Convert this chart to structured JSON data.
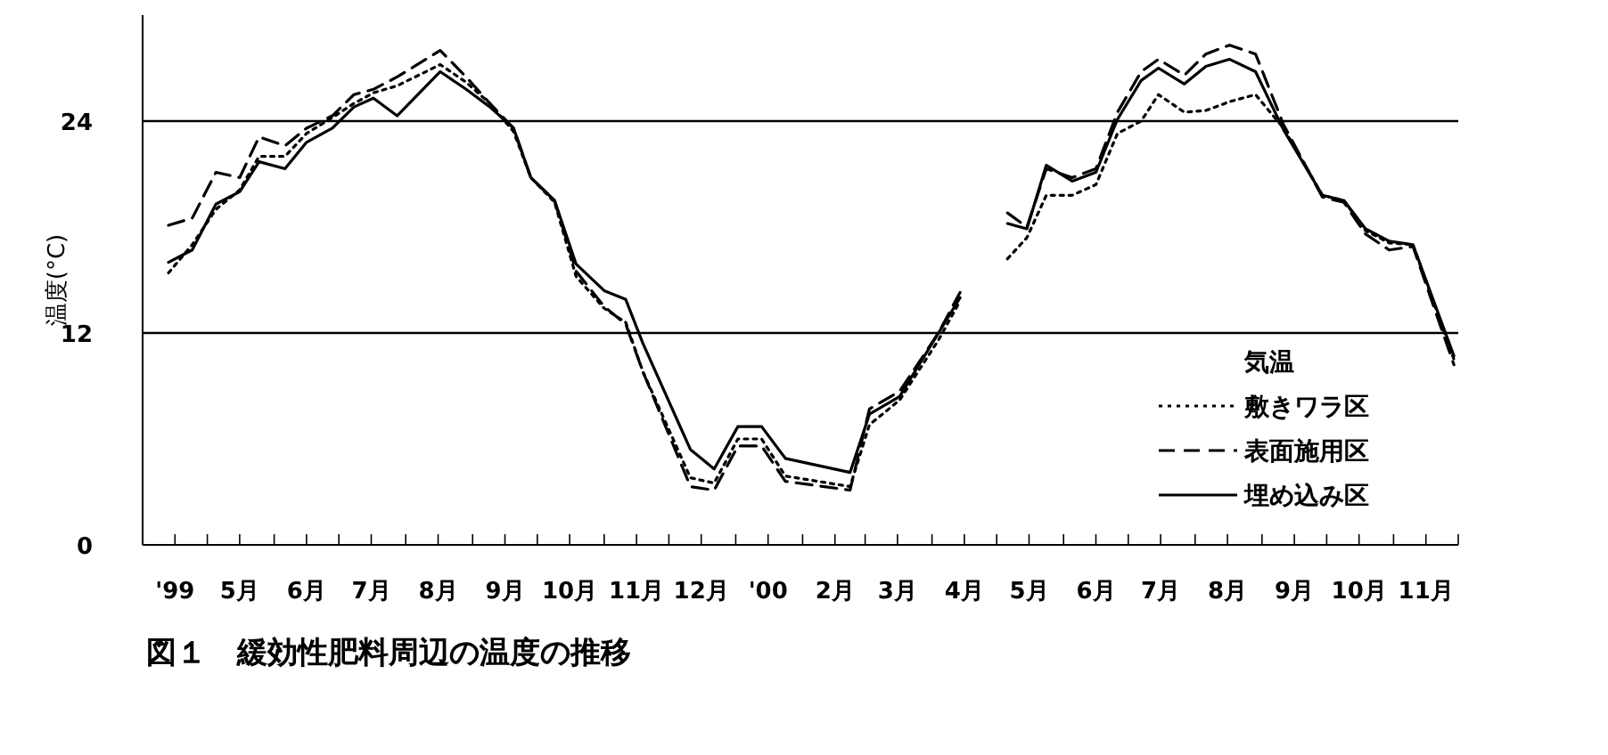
{
  "chart_data": {
    "type": "line",
    "title": "図１　緩効性肥料周辺の温度の推移",
    "ylabel": "温度(°C)",
    "legend_title": "気温",
    "legend": "bottom right",
    "grid": "y",
    "xlim": [
      "1999-04-01",
      "2000-12-01"
    ],
    "ylim": [
      0,
      30
    ],
    "yticks": [
      0,
      12,
      24
    ],
    "xticks": [
      {
        "value": "1999-04-01",
        "label": null
      },
      {
        "value": "1999-04-16",
        "label": "'99"
      },
      {
        "value": "1999-05-01",
        "label": null
      },
      {
        "value": "1999-05-16",
        "label": "5月"
      },
      {
        "value": "1999-06-01",
        "label": null
      },
      {
        "value": "1999-06-16",
        "label": "6月"
      },
      {
        "value": "1999-07-01",
        "label": null
      },
      {
        "value": "1999-07-16",
        "label": "7月"
      },
      {
        "value": "1999-08-01",
        "label": null
      },
      {
        "value": "1999-08-16",
        "label": "8月"
      },
      {
        "value": "1999-09-01",
        "label": null
      },
      {
        "value": "1999-09-16",
        "label": "9月"
      },
      {
        "value": "1999-10-01",
        "label": null
      },
      {
        "value": "1999-10-16",
        "label": "10月"
      },
      {
        "value": "1999-11-01",
        "label": null
      },
      {
        "value": "1999-11-16",
        "label": "11月"
      },
      {
        "value": "1999-12-01",
        "label": null
      },
      {
        "value": "1999-12-16",
        "label": "12月"
      },
      {
        "value": "2000-01-01",
        "label": null
      },
      {
        "value": "2000-01-16",
        "label": "'00"
      },
      {
        "value": "2000-02-01",
        "label": null
      },
      {
        "value": "2000-02-16",
        "label": "2月"
      },
      {
        "value": "2000-03-01",
        "label": null
      },
      {
        "value": "2000-03-16",
        "label": "3月"
      },
      {
        "value": "2000-04-01",
        "label": null
      },
      {
        "value": "2000-04-16",
        "label": "4月"
      },
      {
        "value": "2000-05-01",
        "label": null
      },
      {
        "value": "2000-05-16",
        "label": "5月"
      },
      {
        "value": "2000-06-01",
        "label": null
      },
      {
        "value": "2000-06-16",
        "label": "6月"
      },
      {
        "value": "2000-07-01",
        "label": null
      },
      {
        "value": "2000-07-16",
        "label": "7月"
      },
      {
        "value": "2000-08-01",
        "label": null
      },
      {
        "value": "2000-08-16",
        "label": "8月"
      },
      {
        "value": "2000-09-01",
        "label": null
      },
      {
        "value": "2000-09-16",
        "label": "9月"
      },
      {
        "value": "2000-10-01",
        "label": null
      },
      {
        "value": "2000-10-16",
        "label": "10月"
      },
      {
        "value": "2000-11-01",
        "label": null
      },
      {
        "value": "2000-11-16",
        "label": "11月"
      },
      {
        "value": "2000-12-01",
        "label": null
      }
    ],
    "series": [
      {
        "name": "敷きワラ区",
        "color": "#000000",
        "line_style": "dotted",
        "x": [
          "1999-04-13",
          "1999-04-24",
          "1999-05-05",
          "1999-05-16",
          "1999-05-25",
          "1999-06-06",
          "1999-06-16",
          "1999-06-28",
          "1999-07-08",
          "1999-07-17",
          "1999-07-28",
          "1999-08-17",
          "1999-08-29",
          "1999-09-09",
          "1999-09-20",
          "1999-09-28",
          "1999-10-09",
          "1999-10-19",
          "1999-11-01",
          "1999-11-11",
          "1999-11-19",
          "1999-12-11",
          "1999-12-22",
          "2000-01-02",
          "2000-01-13",
          "2000-01-24",
          "2000-02-23",
          "2000-03-03",
          "2000-03-17",
          "2000-04-04",
          "2000-04-14"
        ],
        "values": [
          15.4,
          17.0,
          19.0,
          20.1,
          22.0,
          22.0,
          23.3,
          24.2,
          25.0,
          25.6,
          26.0,
          27.2,
          26.2,
          25.0,
          23.4,
          20.8,
          19.4,
          15.2,
          13.4,
          12.6,
          9.8,
          3.8,
          3.5,
          6.0,
          6.0,
          3.9,
          3.3,
          6.8,
          8.2,
          11.6,
          13.8
        ]
      },
      {
        "name": "表面施用区",
        "color": "#000000",
        "line_style": "dashed",
        "x": [
          "1999-04-13",
          "1999-04-24",
          "1999-05-05",
          "1999-05-16",
          "1999-05-25",
          "1999-06-06",
          "1999-06-16",
          "1999-06-28",
          "1999-07-08",
          "1999-07-17",
          "1999-07-28",
          "1999-08-17",
          "1999-08-29",
          "1999-09-09",
          "1999-09-20",
          "1999-09-28",
          "1999-10-09",
          "1999-10-19",
          "1999-11-01",
          "1999-11-11",
          "1999-11-19",
          "1999-12-11",
          "1999-12-22",
          "2000-01-02",
          "2000-01-13",
          "2000-01-24",
          "2000-02-23",
          "2000-03-03",
          "2000-03-17",
          "2000-04-04",
          "2000-04-14"
        ],
        "values": [
          18.1,
          18.5,
          21.1,
          20.8,
          23.1,
          22.6,
          23.6,
          24.3,
          25.5,
          25.8,
          26.5,
          28.0,
          26.5,
          25.0,
          23.6,
          20.8,
          19.5,
          15.5,
          13.5,
          12.5,
          9.8,
          3.3,
          3.1,
          5.6,
          5.6,
          3.6,
          3.1,
          7.7,
          8.7,
          12.0,
          14.3
        ]
      },
      {
        "name": "埋め込み区",
        "color": "#000000",
        "line_style": "solid",
        "x": [
          "1999-04-13",
          "1999-04-24",
          "1999-05-05",
          "1999-05-16",
          "1999-05-25",
          "1999-06-06",
          "1999-06-16",
          "1999-06-28",
          "1999-07-08",
          "1999-07-17",
          "1999-07-28",
          "1999-08-17",
          "1999-08-29",
          "1999-09-09",
          "1999-09-20",
          "1999-09-28",
          "1999-10-09",
          "1999-10-19",
          "1999-11-01",
          "1999-11-11",
          "1999-11-19",
          "1999-12-11",
          "1999-12-22",
          "2000-01-02",
          "2000-01-13",
          "2000-01-24",
          "2000-02-23",
          "2000-03-03",
          "2000-03-17",
          "2000-04-04",
          "2000-04-14"
        ],
        "values": [
          16.0,
          16.7,
          19.3,
          20.0,
          21.7,
          21.3,
          22.8,
          23.6,
          24.8,
          25.3,
          24.3,
          26.8,
          25.8,
          24.8,
          23.6,
          20.8,
          19.5,
          15.9,
          14.4,
          13.9,
          11.4,
          5.4,
          4.3,
          6.7,
          6.7,
          4.9,
          4.1,
          7.4,
          8.4,
          12.0,
          14.0
        ]
      },
      {
        "color": "#000000",
        "line_style": "dotted",
        "x": [
          "2000-05-06",
          "2000-05-15",
          "2000-05-24",
          "2000-06-05",
          "2000-06-16",
          "2000-06-26",
          "2000-07-07",
          "2000-07-15",
          "2000-07-27",
          "2000-08-06",
          "2000-08-17",
          "2000-08-29",
          "2000-09-11",
          "2000-09-29",
          "2000-10-09",
          "2000-10-19",
          "2000-10-30",
          "2000-11-10",
          "2000-11-29"
        ],
        "values": [
          16.2,
          17.4,
          19.8,
          19.8,
          20.4,
          23.3,
          24.0,
          25.5,
          24.5,
          24.6,
          25.1,
          25.5,
          23.6,
          19.8,
          19.5,
          17.8,
          17.1,
          17.0,
          10.5
        ]
      },
      {
        "color": "#000000",
        "line_style": "dashed",
        "x": [
          "2000-05-06",
          "2000-05-15",
          "2000-05-24",
          "2000-06-05",
          "2000-06-16",
          "2000-06-26",
          "2000-07-07",
          "2000-07-15",
          "2000-07-27",
          "2000-08-06",
          "2000-08-17",
          "2000-08-29",
          "2000-09-11",
          "2000-09-29",
          "2000-10-09",
          "2000-10-19",
          "2000-10-30",
          "2000-11-10",
          "2000-11-29"
        ],
        "values": [
          18.8,
          18.0,
          21.3,
          20.8,
          21.3,
          24.5,
          26.8,
          27.5,
          26.6,
          27.8,
          28.3,
          27.8,
          23.8,
          19.7,
          19.4,
          17.6,
          16.7,
          16.9,
          10.2
        ]
      },
      {
        "color": "#000000",
        "line_style": "solid",
        "x": [
          "2000-05-06",
          "2000-05-15",
          "2000-05-24",
          "2000-06-05",
          "2000-06-16",
          "2000-06-26",
          "2000-07-07",
          "2000-07-15",
          "2000-07-27",
          "2000-08-06",
          "2000-08-17",
          "2000-08-29",
          "2000-09-11",
          "2000-09-29",
          "2000-10-09",
          "2000-10-19",
          "2000-10-30",
          "2000-11-10",
          "2000-11-29"
        ],
        "values": [
          18.2,
          17.9,
          21.5,
          20.6,
          21.1,
          24.1,
          26.3,
          27.0,
          26.1,
          27.1,
          27.5,
          26.8,
          23.5,
          19.8,
          19.5,
          17.9,
          17.2,
          17.0,
          10.7
        ]
      }
    ]
  }
}
